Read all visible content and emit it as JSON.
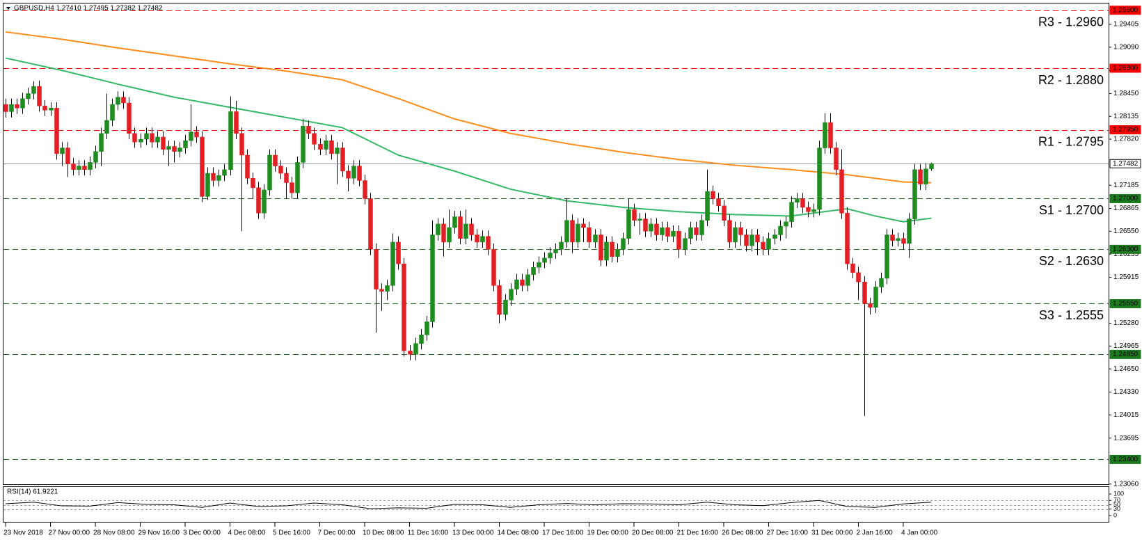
{
  "chart_data": {
    "type": "candlestick",
    "title": "GBPUSD,H4  1.27410 1.27495 1.27382 1.27482",
    "up_color": "#1e8c1e",
    "down_color": "#e31e24",
    "wick_color": "#000000",
    "open": [
      1.283,
      1.282,
      1.283,
      1.2825,
      1.2838,
      1.2845,
      1.2855,
      1.2828,
      1.2822,
      1.2825,
      1.2762,
      1.277,
      1.2748,
      1.274,
      1.2745,
      1.274,
      1.275,
      1.2765,
      1.279,
      1.2808,
      1.283,
      1.284,
      1.2832,
      1.279,
      1.2778,
      1.2782,
      1.279,
      1.2778,
      1.2785,
      1.2768,
      1.2772,
      1.2765,
      1.277,
      1.278,
      1.2792,
      1.2785,
      1.2703,
      1.2735,
      1.2725,
      1.2732,
      1.274,
      1.282,
      1.279,
      1.276,
      1.2728,
      1.2715,
      1.268,
      1.2712,
      1.276,
      1.2745,
      1.2735,
      1.2722,
      1.2708,
      1.275,
      1.28,
      1.279,
      1.2775,
      1.2768,
      1.278,
      1.2762,
      1.277,
      1.2738,
      1.2728,
      1.2745,
      1.2725,
      1.27,
      1.263,
      1.2575,
      1.2572,
      1.258,
      1.264,
      1.261,
      1.249,
      1.2485,
      1.25,
      1.2512,
      1.253,
      1.265,
      1.2665,
      1.264,
      1.266,
      1.2675,
      1.2645,
      1.2665,
      1.265,
      1.264,
      1.2648,
      1.263,
      1.258,
      1.254,
      1.256,
      1.2575,
      1.2588,
      1.258,
      1.2595,
      1.2605,
      1.2612,
      1.2618,
      1.2625,
      1.263,
      1.264,
      1.267,
      1.264,
      1.2665,
      1.266,
      1.264,
      1.265,
      1.2615,
      1.264,
      1.262,
      1.263,
      1.2645,
      1.2685,
      1.267,
      1.2672,
      1.2655,
      1.2665,
      1.265,
      1.266,
      1.2648,
      1.2655,
      1.263,
      1.2645,
      1.266,
      1.265,
      1.267,
      1.271,
      1.27,
      1.269,
      1.267,
      1.264,
      1.266,
      1.265,
      1.2635,
      1.265,
      1.264,
      1.263,
      1.2645,
      1.265,
      1.2662,
      1.2668,
      1.2695,
      1.27,
      1.2688,
      1.2682,
      1.2685,
      1.277,
      1.2805,
      1.277,
      1.274,
      1.268,
      1.261,
      1.2598,
      1.2585,
      1.2555,
      1.255,
      1.2578,
      1.259,
      1.265,
      1.2642,
      1.2645,
      1.2638,
      1.2672,
      1.274,
      1.272,
      1.2741
    ],
    "high": [
      1.2838,
      1.2838,
      1.2838,
      1.2846,
      1.2853,
      1.2862,
      1.2863,
      1.2836,
      1.2833,
      1.2833,
      1.2778,
      1.2778,
      1.2756,
      1.2753,
      1.2753,
      1.2758,
      1.2773,
      1.2798,
      1.2845,
      1.2838,
      1.2848,
      1.2848,
      1.284,
      1.2798,
      1.279,
      1.2798,
      1.2798,
      1.2793,
      1.2793,
      1.278,
      1.278,
      1.2778,
      1.2788,
      1.283,
      1.28,
      1.2793,
      1.2743,
      1.2743,
      1.274,
      1.2748,
      1.2841,
      1.2835,
      1.2798,
      1.2768,
      1.2736,
      1.2723,
      1.272,
      1.2768,
      1.2768,
      1.2753,
      1.2743,
      1.273,
      1.2758,
      1.281,
      1.2808,
      1.2798,
      1.2783,
      1.2788,
      1.2788,
      1.2778,
      1.2778,
      1.2746,
      1.2753,
      1.2753,
      1.2733,
      1.2708,
      1.2638,
      1.2583,
      1.2588,
      1.2652,
      1.2648,
      1.2618,
      1.2498,
      1.2508,
      1.252,
      1.2538,
      1.267,
      1.2673,
      1.2673,
      1.2685,
      1.2683,
      1.2683,
      1.2685,
      1.2673,
      1.2658,
      1.2656,
      1.2656,
      1.2638,
      1.2588,
      1.2568,
      1.2583,
      1.2596,
      1.2596,
      1.2603,
      1.2613,
      1.262,
      1.2626,
      1.2633,
      1.2638,
      1.2648,
      1.27,
      1.2678,
      1.2673,
      1.2673,
      1.2668,
      1.2658,
      1.2658,
      1.2648,
      1.2648,
      1.2638,
      1.2653,
      1.27,
      1.2693,
      1.268,
      1.268,
      1.2673,
      1.2673,
      1.2668,
      1.2668,
      1.2663,
      1.2663,
      1.2653,
      1.2668,
      1.2668,
      1.2678,
      1.274,
      1.2718,
      1.2708,
      1.2698,
      1.2678,
      1.2668,
      1.2668,
      1.2658,
      1.2658,
      1.2658,
      1.2648,
      1.2653,
      1.2658,
      1.267,
      1.2676,
      1.2703,
      1.2708,
      1.2708,
      1.2696,
      1.2693,
      1.278,
      1.2818,
      1.2818,
      1.2778,
      1.2768,
      1.2688,
      1.2618,
      1.2606,
      1.2593,
      1.2563,
      1.2586,
      1.2598,
      1.2658,
      1.2658,
      1.2653,
      1.2653,
      1.268,
      1.2748,
      1.2748,
      1.2749,
      1.27495
    ],
    "low": [
      1.2812,
      1.2812,
      1.2817,
      1.2817,
      1.283,
      1.2837,
      1.282,
      1.2814,
      1.2814,
      1.2754,
      1.2745,
      1.273,
      1.2732,
      1.2732,
      1.2732,
      1.2732,
      1.2742,
      1.2745,
      1.2782,
      1.28,
      1.2822,
      1.2824,
      1.2782,
      1.277,
      1.277,
      1.2774,
      1.277,
      1.277,
      1.276,
      1.2745,
      1.275,
      1.2757,
      1.2762,
      1.2772,
      1.2777,
      1.2695,
      1.2698,
      1.2717,
      1.2717,
      1.2724,
      1.2732,
      1.2782,
      1.2655,
      1.272,
      1.27,
      1.2672,
      1.2672,
      1.2704,
      1.2737,
      1.2727,
      1.27,
      1.27,
      1.27,
      1.2742,
      1.2782,
      1.2767,
      1.276,
      1.276,
      1.2754,
      1.272,
      1.273,
      1.271,
      1.272,
      1.2717,
      1.2692,
      1.2622,
      1.2515,
      1.2545,
      1.256,
      1.2572,
      1.2602,
      1.2482,
      1.2477,
      1.2477,
      1.2492,
      1.2504,
      1.2522,
      1.2642,
      1.262,
      1.2632,
      1.2652,
      1.2637,
      1.2637,
      1.2642,
      1.2632,
      1.2632,
      1.2622,
      1.2572,
      1.2528,
      1.2532,
      1.2552,
      1.2567,
      1.2572,
      1.2572,
      1.2587,
      1.2597,
      1.2604,
      1.261,
      1.2617,
      1.2622,
      1.2632,
      1.2625,
      1.2632,
      1.264,
      1.2632,
      1.2632,
      1.2607,
      1.2607,
      1.2612,
      1.2612,
      1.2622,
      1.2637,
      1.2662,
      1.265,
      1.2647,
      1.2647,
      1.2642,
      1.2642,
      1.264,
      1.264,
      1.2618,
      1.2622,
      1.2637,
      1.2642,
      1.2642,
      1.2662,
      1.2692,
      1.2682,
      1.2662,
      1.2632,
      1.2632,
      1.2635,
      1.2627,
      1.2627,
      1.2622,
      1.2622,
      1.2622,
      1.2637,
      1.2642,
      1.2645,
      1.266,
      1.2687,
      1.268,
      1.2674,
      1.2674,
      1.2677,
      1.2762,
      1.2762,
      1.2732,
      1.2672,
      1.2602,
      1.259,
      1.256,
      1.24,
      1.254,
      1.2542,
      1.257,
      1.2582,
      1.2634,
      1.2634,
      1.263,
      1.2618,
      1.2664,
      1.2712,
      1.2712,
      1.27382
    ],
    "close": [
      1.282,
      1.283,
      1.2825,
      1.2838,
      1.2845,
      1.2855,
      1.2828,
      1.2822,
      1.2825,
      1.2762,
      1.277,
      1.2748,
      1.274,
      1.2745,
      1.274,
      1.275,
      1.2765,
      1.279,
      1.2808,
      1.283,
      1.284,
      1.2832,
      1.279,
      1.2778,
      1.2782,
      1.279,
      1.2778,
      1.2785,
      1.2768,
      1.2772,
      1.2765,
      1.277,
      1.278,
      1.2792,
      1.2785,
      1.2703,
      1.2735,
      1.2725,
      1.2732,
      1.274,
      1.282,
      1.279,
      1.276,
      1.2728,
      1.2715,
      1.268,
      1.2712,
      1.276,
      1.2745,
      1.2735,
      1.2722,
      1.2708,
      1.275,
      1.28,
      1.279,
      1.2775,
      1.2768,
      1.278,
      1.2762,
      1.277,
      1.2738,
      1.2728,
      1.2745,
      1.2725,
      1.27,
      1.263,
      1.2575,
      1.2572,
      1.258,
      1.264,
      1.261,
      1.249,
      1.2485,
      1.25,
      1.2512,
      1.253,
      1.265,
      1.2665,
      1.264,
      1.266,
      1.2675,
      1.2645,
      1.2665,
      1.265,
      1.264,
      1.2648,
      1.263,
      1.258,
      1.254,
      1.256,
      1.2575,
      1.2588,
      1.258,
      1.2595,
      1.2605,
      1.2612,
      1.2618,
      1.2625,
      1.263,
      1.264,
      1.267,
      1.264,
      1.2665,
      1.266,
      1.264,
      1.265,
      1.2615,
      1.264,
      1.262,
      1.263,
      1.2645,
      1.2685,
      1.267,
      1.2672,
      1.2655,
      1.2665,
      1.265,
      1.266,
      1.2648,
      1.2655,
      1.263,
      1.2645,
      1.266,
      1.265,
      1.267,
      1.271,
      1.27,
      1.269,
      1.267,
      1.264,
      1.266,
      1.265,
      1.2635,
      1.265,
      1.264,
      1.263,
      1.2645,
      1.265,
      1.2662,
      1.2668,
      1.2695,
      1.27,
      1.2688,
      1.2682,
      1.2685,
      1.277,
      1.2805,
      1.277,
      1.274,
      1.268,
      1.261,
      1.2598,
      1.2585,
      1.2555,
      1.255,
      1.2578,
      1.259,
      1.265,
      1.2642,
      1.2645,
      1.2638,
      1.2672,
      1.274,
      1.272,
      1.2741,
      1.27482
    ],
    "xlim": [
      -1,
      196.6
    ],
    "xticks": [
      {
        "value": 0,
        "label": "23 Nov 2018"
      },
      {
        "value": 8,
        "label": "27 Nov 00:00"
      },
      {
        "value": 16,
        "label": "28 Nov 08:00"
      },
      {
        "value": 24,
        "label": "29 Nov 16:00"
      },
      {
        "value": 32,
        "label": "3 Dec 00:00"
      },
      {
        "value": 40,
        "label": "4 Dec 08:00"
      },
      {
        "value": 48,
        "label": "5 Dec 16:00"
      },
      {
        "value": 56,
        "label": "7 Dec 00:00"
      },
      {
        "value": 64,
        "label": "10 Dec 08:00"
      },
      {
        "value": 72,
        "label": "11 Dec 16:00"
      },
      {
        "value": 80,
        "label": "13 Dec 00:00"
      },
      {
        "value": 88,
        "label": "14 Dec 08:00"
      },
      {
        "value": 96,
        "label": "17 Dec 16:00"
      },
      {
        "value": 104,
        "label": "19 Dec 00:00"
      },
      {
        "value": 112,
        "label": "20 Dec 08:00"
      },
      {
        "value": 120,
        "label": "21 Dec 16:00"
      },
      {
        "value": 128,
        "label": "26 Dec 08:00"
      },
      {
        "value": 136,
        "label": "27 Dec 16:00"
      },
      {
        "value": 144,
        "label": "31 Dec 00:00"
      },
      {
        "value": 152,
        "label": "2 Jan 16:00"
      },
      {
        "value": 160,
        "label": "4 Jan 00:00"
      }
    ],
    "ylim": [
      1.23058,
      1.29693
    ],
    "yticks": [
      {
        "value": 1.29405,
        "label": "1.29405"
      },
      {
        "value": 1.2909,
        "label": "1.29090"
      },
      {
        "value": 1.2877,
        "label": "1.28770"
      },
      {
        "value": 1.2845,
        "label": "1.28450"
      },
      {
        "value": 1.28135,
        "label": "1.28135"
      },
      {
        "value": 1.2782,
        "label": "1.27820"
      },
      {
        "value": 1.27185,
        "label": "1.27185"
      },
      {
        "value": 1.26865,
        "label": "1.26865"
      },
      {
        "value": 1.2655,
        "label": "1.26550"
      },
      {
        "value": 1.26235,
        "label": "1.26235"
      },
      {
        "value": 1.25915,
        "label": "1.25915"
      },
      {
        "value": 1.2528,
        "label": "1.25280"
      },
      {
        "value": 1.24965,
        "label": "1.24965"
      },
      {
        "value": 1.2465,
        "label": "1.24650"
      },
      {
        "value": 1.2433,
        "label": "1.24330"
      },
      {
        "value": 1.24015,
        "label": "1.24015"
      },
      {
        "value": 1.23695,
        "label": "1.23695"
      },
      {
        "value": 1.2306,
        "label": "1.23060"
      }
    ],
    "lines": [
      {
        "color": "#ff8c1a",
        "x": [
          0,
          10,
          20,
          30,
          40,
          50,
          60,
          70,
          80,
          90,
          100,
          110,
          120,
          130,
          140,
          150,
          160,
          165
        ],
        "values": [
          1.293,
          1.292,
          1.2908,
          1.2897,
          1.2886,
          1.2876,
          1.2864,
          1.2838,
          1.281,
          1.279,
          1.2776,
          1.2764,
          1.2754,
          1.2746,
          1.274,
          1.2733,
          1.2723,
          1.2722
        ]
      },
      {
        "color": "#33b866",
        "x": [
          0,
          10,
          20,
          30,
          40,
          50,
          60,
          70,
          80,
          90,
          100,
          110,
          120,
          130,
          140,
          150,
          155,
          160,
          165
        ],
        "values": [
          1.2894,
          1.2877,
          1.2858,
          1.284,
          1.2826,
          1.2812,
          1.2798,
          1.276,
          1.2738,
          1.2713,
          1.2697,
          1.2688,
          1.2682,
          1.2678,
          1.2676,
          1.2686,
          1.2676,
          1.2668,
          1.2673
        ]
      }
    ],
    "levels": [
      {
        "value": 1.296,
        "label": "1.29600",
        "annotation": "R3 - 1.2960",
        "color": "#ff0000",
        "dashed": true,
        "box": "#ff0000",
        "box_text": "#ffffff"
      },
      {
        "value": 1.288,
        "label": "1.28800",
        "annotation": "R2 - 1.2880",
        "color": "#ff0000",
        "dashed": true,
        "box": "#ff0000",
        "box_text": "#ffffff"
      },
      {
        "value": 1.2795,
        "label": "1.27950",
        "annotation": "R1 - 1.2795",
        "color": "#ff0000",
        "dashed": true,
        "box": "#ff0000",
        "box_text": "#ffffff"
      },
      {
        "value": 1.27482,
        "label": "1.27482",
        "color": "#8c9aaa",
        "dashed": false,
        "box": "#ffffff",
        "box_text": "#000000"
      },
      {
        "value": 1.27,
        "label": "1.27000",
        "annotation": "S1 - 1.2700",
        "color": "#1e6e1e",
        "dashed": true,
        "box": "#1e7a1e",
        "box_text": "#ffffff"
      },
      {
        "value": 1.263,
        "label": "1.26300",
        "annotation": "S2 - 1.2630",
        "color": "#1e6e1e",
        "dashed": true,
        "box": "#1e7a1e",
        "box_text": "#ffffff"
      },
      {
        "value": 1.2555,
        "label": "1.25550",
        "annotation": "S3 - 1.2555",
        "color": "#1e6e1e",
        "dashed": true,
        "box": "#1e7a1e",
        "box_text": "#ffffff"
      },
      {
        "value": 1.2485,
        "label": "1.24850",
        "color": "#1e6e1e",
        "dashed": true,
        "box": "#1e7a1e",
        "box_text": "#ffffff"
      },
      {
        "value": 1.234,
        "label": "1.23400",
        "color": "#1e6e1e",
        "dashed": true,
        "box": "#1e7a1e",
        "box_text": "#ffffff"
      }
    ],
    "rsi": {
      "label": "RSI(14) 61.9221",
      "color": "#000000",
      "x": [
        0,
        5,
        10,
        15,
        20,
        25,
        30,
        35,
        40,
        45,
        50,
        55,
        60,
        65,
        70,
        75,
        80,
        85,
        90,
        95,
        100,
        105,
        110,
        115,
        120,
        125,
        130,
        135,
        140,
        145,
        150,
        155,
        160,
        165
      ],
      "values": [
        55,
        62,
        45,
        44,
        60,
        52,
        50,
        38,
        58,
        42,
        45,
        58,
        50,
        32,
        36,
        34,
        52,
        50,
        38,
        50,
        56,
        50,
        55,
        54,
        50,
        62,
        50,
        46,
        60,
        70,
        42,
        38,
        54,
        61.9221
      ],
      "ylim": [
        -29,
        135.5
      ],
      "yticks": [
        100,
        70,
        50,
        30,
        0
      ],
      "levels": [
        70,
        50,
        30
      ]
    }
  }
}
